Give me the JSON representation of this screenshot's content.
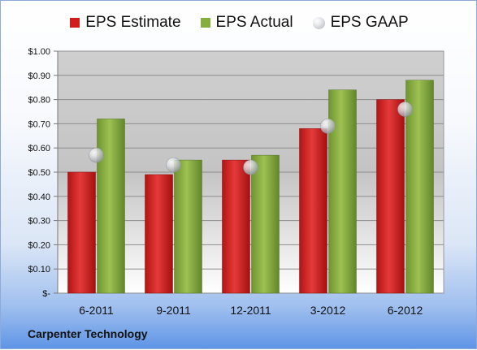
{
  "company": "Carpenter Technology",
  "chart_data": {
    "type": "bar",
    "categories": [
      "6-2011",
      "9-2011",
      "12-2011",
      "3-2012",
      "6-2012"
    ],
    "series": [
      {
        "name": "EPS Estimate",
        "kind": "bar",
        "color": "#d01e1e",
        "values": [
          0.5,
          0.49,
          0.55,
          0.68,
          0.8
        ]
      },
      {
        "name": "EPS Actual",
        "kind": "bar",
        "color": "#86ae3f",
        "values": [
          0.72,
          0.55,
          0.57,
          0.84,
          0.88
        ]
      },
      {
        "name": "EPS GAAP",
        "kind": "marker",
        "color": "#b8bcc2",
        "values": [
          0.57,
          0.53,
          0.52,
          0.69,
          0.76
        ]
      }
    ],
    "ylim": [
      0,
      1.0
    ],
    "yticks": [
      0,
      0.1,
      0.2,
      0.3,
      0.4,
      0.5,
      0.6,
      0.7,
      0.8,
      0.9,
      1.0
    ],
    "ytick_labels": [
      "$-",
      "$0.10",
      "$0.20",
      "$0.30",
      "$0.40",
      "$0.50",
      "$0.60",
      "$0.70",
      "$0.80",
      "$0.90",
      "$1.00"
    ],
    "grid": true,
    "legend_position": "top"
  }
}
